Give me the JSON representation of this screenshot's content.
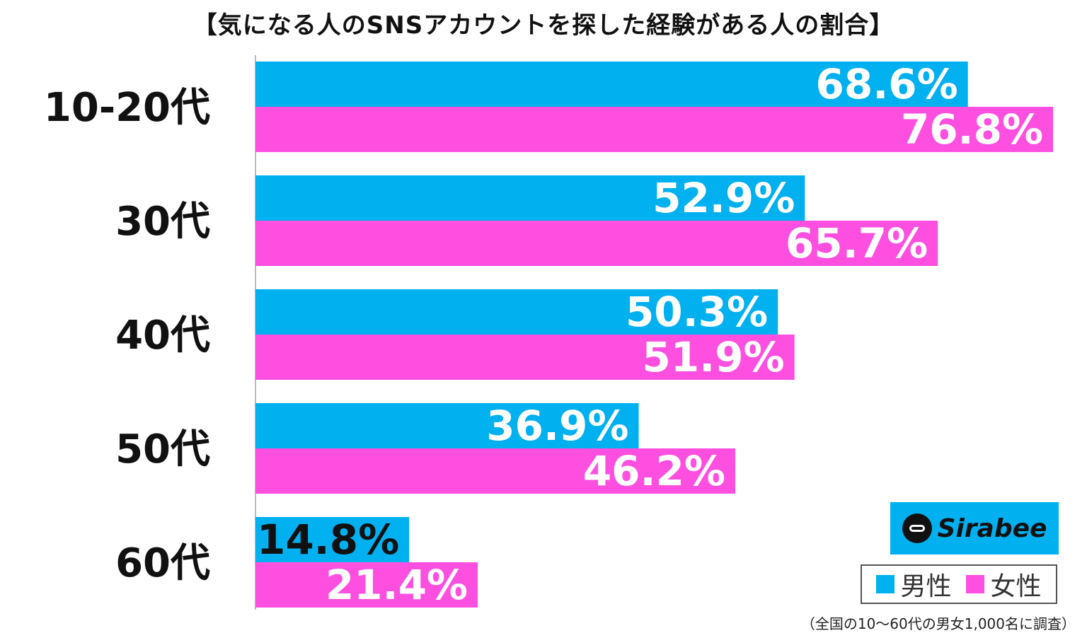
{
  "title": "【気になる人のSNSアカウントを探した経験がある人の割合】",
  "note": "（全国の10〜60代の男女1,000名に調査）",
  "logo": {
    "text": "Sirabee"
  },
  "legend": [
    {
      "label": "男性",
      "color": "#00b0ef"
    },
    {
      "label": "女性",
      "color": "#ff4fe0"
    }
  ],
  "chart_data": {
    "type": "bar",
    "orientation": "horizontal",
    "categories": [
      "10-20代",
      "30代",
      "40代",
      "50代",
      "60代"
    ],
    "series": [
      {
        "name": "男性",
        "color": "#00b0ef",
        "values": [
          68.6,
          52.9,
          50.3,
          36.9,
          14.8
        ],
        "labels": [
          "68.6%",
          "52.9%",
          "50.3%",
          "36.9%",
          "14.8%"
        ]
      },
      {
        "name": "女性",
        "color": "#ff4fe0",
        "values": [
          76.8,
          65.7,
          51.9,
          46.2,
          21.4
        ],
        "labels": [
          "76.8%",
          "65.7%",
          "51.9%",
          "46.2%",
          "21.4%"
        ]
      }
    ],
    "xlim": [
      0,
      77
    ],
    "grid": false,
    "legend_position": "bottom-right"
  }
}
